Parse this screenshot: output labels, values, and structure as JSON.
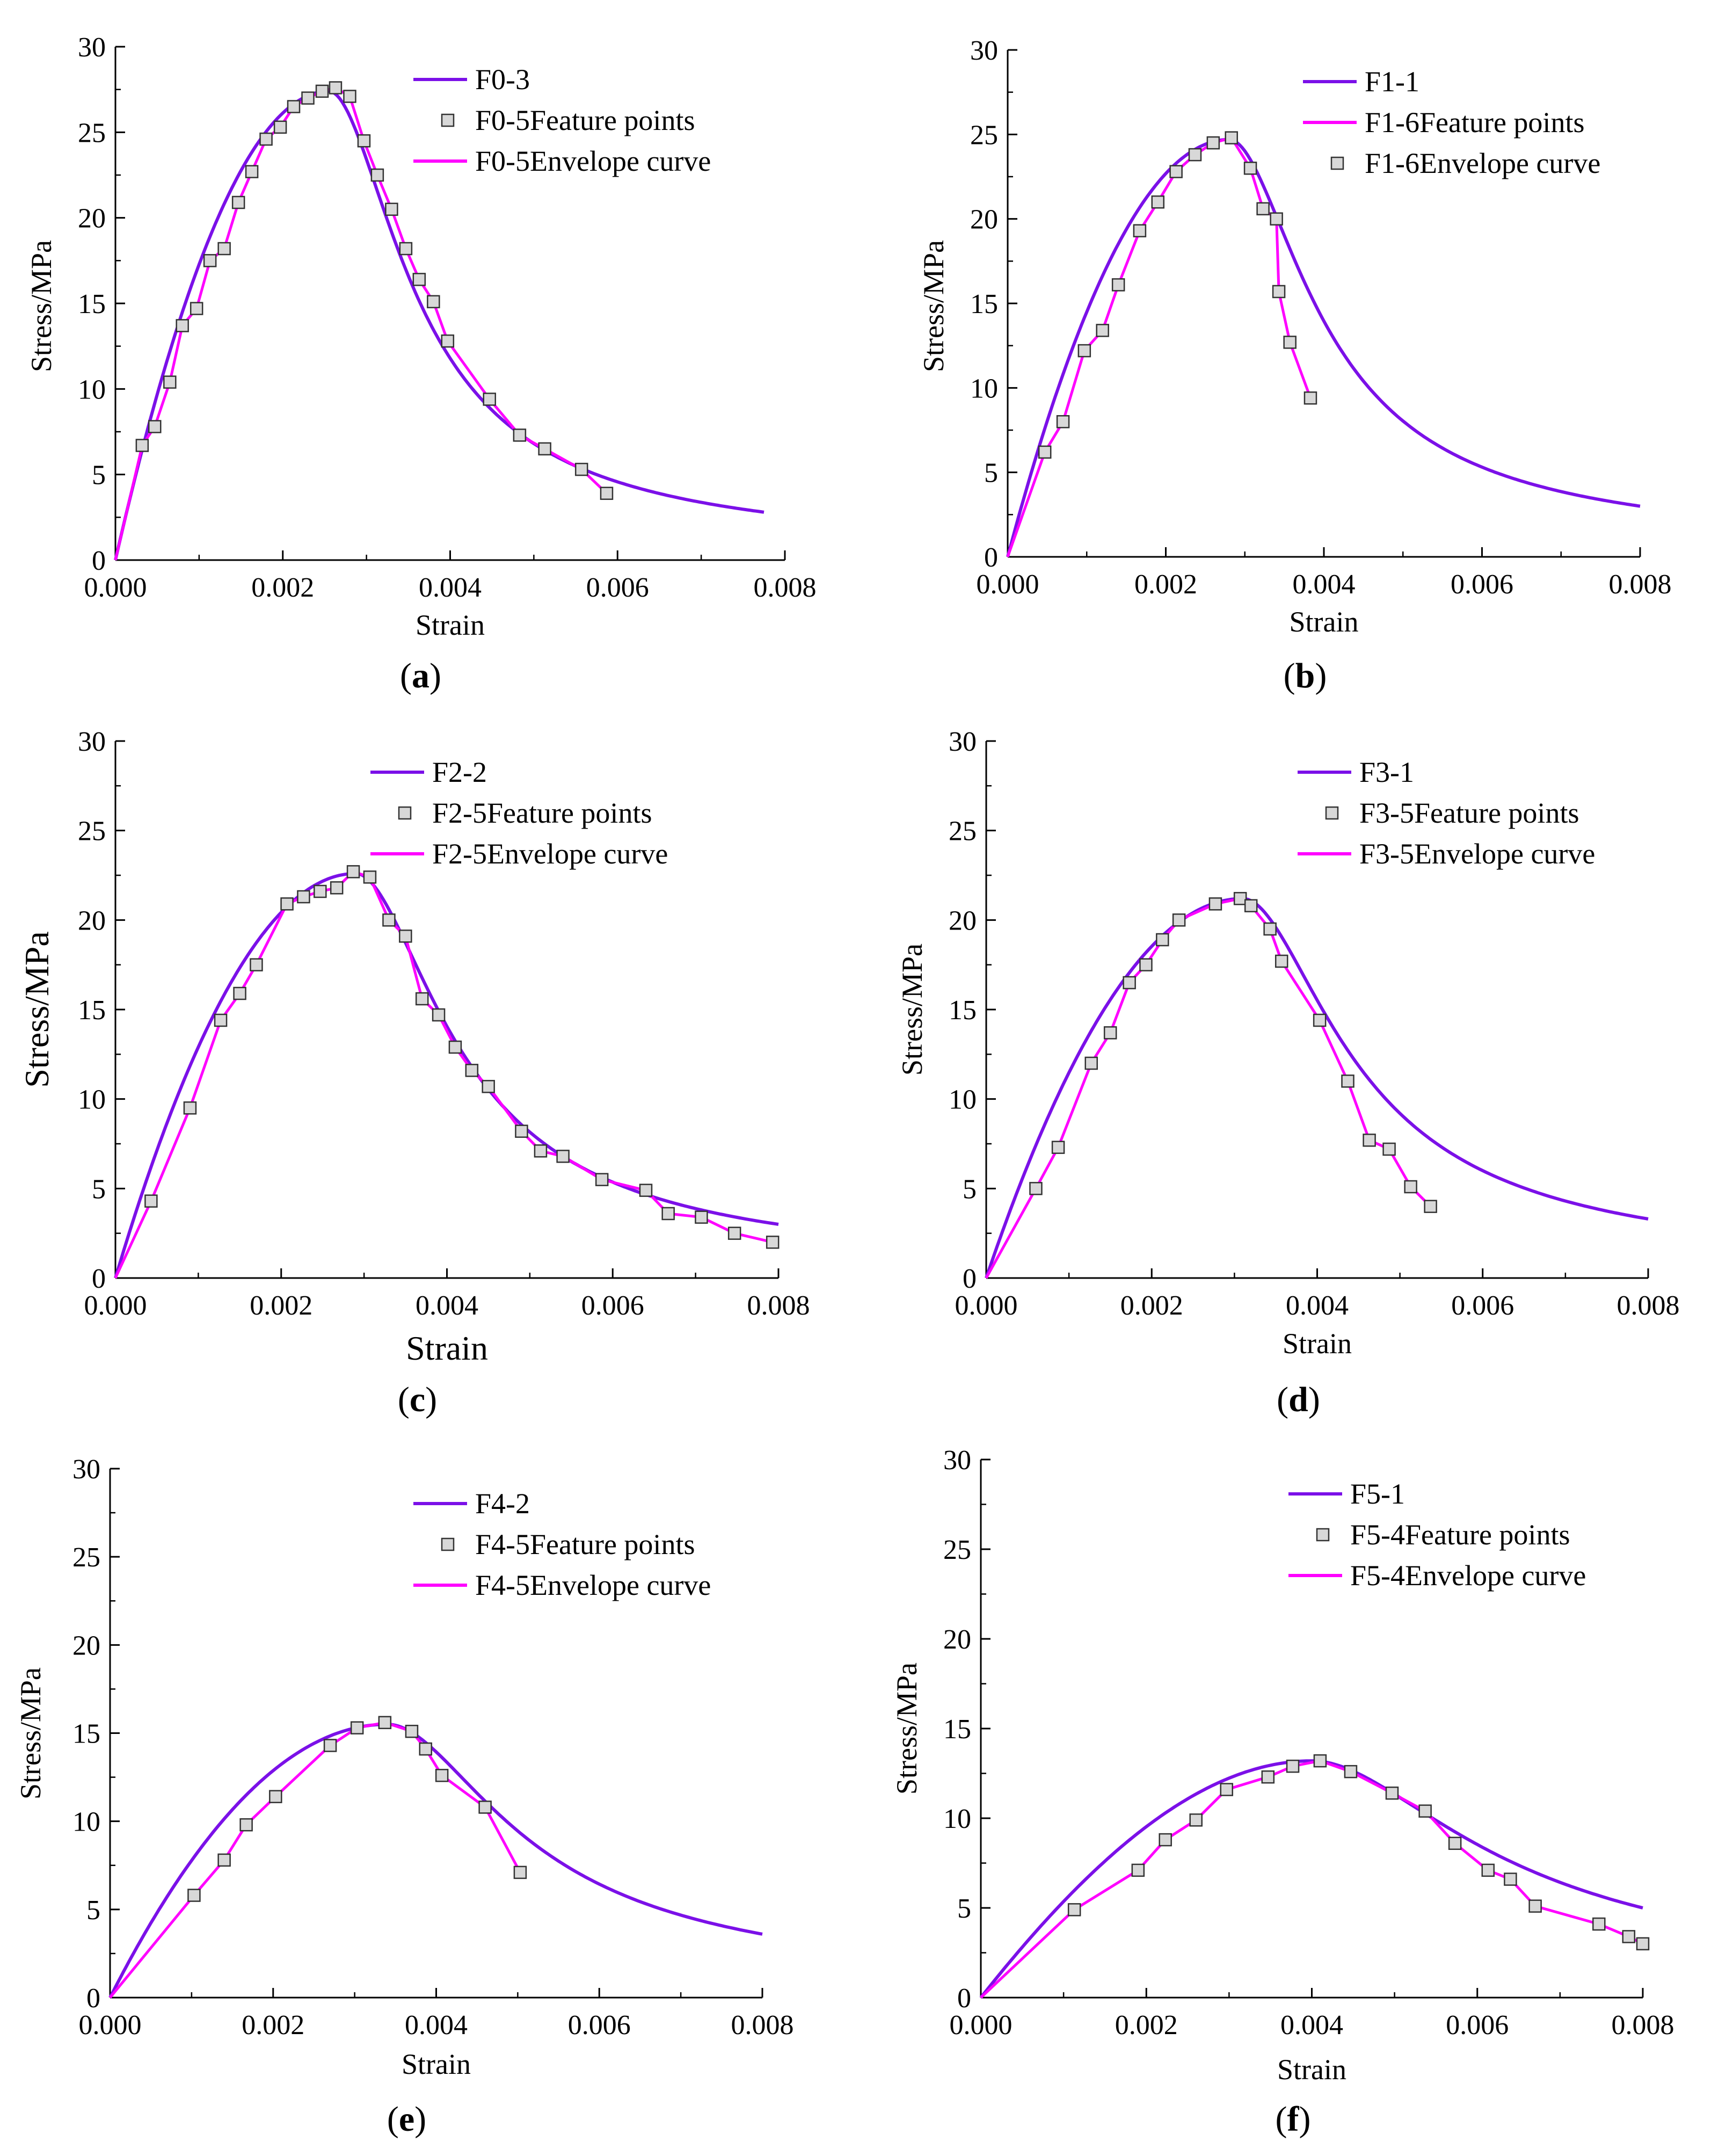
{
  "colors": {
    "model": "#7b10e8",
    "envelope": "#ff00ff",
    "points_stroke": "#333333",
    "points_fill": "#d8d8d8",
    "axis": "#000000"
  },
  "chart_data": [
    {
      "type": "line",
      "panel_label": "a",
      "xlabel": "Strain",
      "ylabel": "Stress/MPa",
      "xlim": [
        0,
        0.008
      ],
      "ylim": [
        0,
        30
      ],
      "xticks": [
        "0.000",
        "0.002",
        "0.004",
        "0.006",
        "0.008"
      ],
      "yticks": [
        "0",
        "5",
        "10",
        "15",
        "20",
        "25",
        "30"
      ],
      "legend": {
        "model": "F0-3",
        "points": "F0-5Feature points",
        "envelope": "F0-5Envelope curve",
        "order": [
          "model",
          "points",
          "envelope"
        ]
      },
      "model_curve": {
        "name": "F0-3",
        "peak_strain": 0.00255,
        "peak_stress": 27.4,
        "x_end": 0.00775,
        "end_stress": 2.8
      },
      "series": [
        {
          "name": "F0-5Envelope curve",
          "role": "envelope_and_points",
          "x": [
            0.0,
            0.00032,
            0.00047,
            0.00065,
            0.0008,
            0.00097,
            0.00113,
            0.0013,
            0.00147,
            0.00163,
            0.0018,
            0.00197,
            0.00213,
            0.0023,
            0.00247,
            0.00263,
            0.0028,
            0.00297,
            0.00313,
            0.0033,
            0.00347,
            0.00363,
            0.0038,
            0.00397,
            0.00447,
            0.00483,
            0.00513,
            0.00557,
            0.00587
          ],
          "y": [
            0.0,
            6.7,
            7.8,
            10.4,
            13.7,
            14.7,
            17.5,
            18.2,
            20.9,
            22.7,
            24.6,
            25.3,
            26.5,
            27.0,
            27.4,
            27.6,
            27.1,
            24.5,
            22.5,
            20.5,
            18.2,
            16.4,
            15.1,
            12.8,
            9.4,
            7.3,
            6.5,
            5.3,
            3.9
          ]
        }
      ]
    },
    {
      "type": "line",
      "panel_label": "b",
      "xlabel": "Strain",
      "ylabel": "Stress/MPa",
      "xlim": [
        0,
        0.008
      ],
      "ylim": [
        0,
        30
      ],
      "xticks": [
        "0.000",
        "0.002",
        "0.004",
        "0.006",
        "0.008"
      ],
      "yticks": [
        "0",
        "5",
        "10",
        "15",
        "20",
        "25",
        "30"
      ],
      "legend": {
        "model": "F1-1",
        "points": "F1-6Envelope curve",
        "envelope": "F1-6Feature points",
        "order": [
          "model",
          "envelope",
          "points"
        ]
      },
      "model_curve": {
        "name": "F1-1",
        "peak_strain": 0.0028,
        "peak_stress": 24.7,
        "x_end": 0.008,
        "end_stress": 3.0
      },
      "series": [
        {
          "name": "F1-6",
          "role": "envelope_and_points",
          "x": [
            0.0,
            0.00047,
            0.0007,
            0.00097,
            0.0012,
            0.0014,
            0.00167,
            0.0019,
            0.00213,
            0.00237,
            0.0026,
            0.00283,
            0.00307,
            0.00323,
            0.0034,
            0.00343,
            0.00357,
            0.00383
          ],
          "y": [
            0.0,
            6.2,
            8.0,
            12.2,
            13.4,
            16.1,
            19.3,
            21.0,
            22.8,
            23.8,
            24.5,
            24.8,
            23.0,
            20.6,
            20.0,
            15.7,
            12.7,
            9.4
          ]
        }
      ]
    },
    {
      "type": "line",
      "panel_label": "c",
      "xlabel": "Strain",
      "ylabel": "Stress/MPa",
      "xlim": [
        0,
        0.008
      ],
      "ylim": [
        0,
        30
      ],
      "xticks": [
        "0.000",
        "0.002",
        "0.004",
        "0.006",
        "0.008"
      ],
      "yticks": [
        "0",
        "5",
        "10",
        "15",
        "20",
        "25",
        "30"
      ],
      "legend": {
        "model": "F2-2",
        "points": "F2-5Feature points",
        "envelope": "F2-5Envelope curve",
        "order": [
          "model",
          "points",
          "envelope"
        ]
      },
      "model_curve": {
        "name": "F2-2",
        "peak_strain": 0.0029,
        "peak_stress": 22.6,
        "x_end": 0.008,
        "end_stress": 3.0
      },
      "series": [
        {
          "name": "F2-5Envelope curve",
          "role": "envelope_and_points",
          "x": [
            0.0,
            0.00043,
            0.0009,
            0.00127,
            0.0015,
            0.0017,
            0.00207,
            0.00227,
            0.00247,
            0.00267,
            0.00287,
            0.00307,
            0.0033,
            0.0035,
            0.0037,
            0.0039,
            0.0041,
            0.0043,
            0.0045,
            0.0049,
            0.00513,
            0.0054,
            0.00587,
            0.0064,
            0.00667,
            0.00707,
            0.00747,
            0.00793
          ],
          "y": [
            0.0,
            4.3,
            9.5,
            14.4,
            15.9,
            17.5,
            20.9,
            21.3,
            21.6,
            21.8,
            22.7,
            22.4,
            20.0,
            19.1,
            15.6,
            14.7,
            12.9,
            11.6,
            10.7,
            8.2,
            7.1,
            6.8,
            5.5,
            4.9,
            3.6,
            3.4,
            2.5,
            2.0
          ]
        }
      ]
    },
    {
      "type": "line",
      "panel_label": "d",
      "xlabel": "Strain",
      "ylabel": "Stress/MPa",
      "xlim": [
        0,
        0.008
      ],
      "ylim": [
        0,
        30
      ],
      "xticks": [
        "0.000",
        "0.002",
        "0.004",
        "0.006",
        "0.008"
      ],
      "yticks": [
        "0",
        "5",
        "10",
        "15",
        "20",
        "25",
        "30"
      ],
      "legend": {
        "model": "F3-1",
        "points": "F3-5Feature points",
        "envelope": "F3-5Envelope curve",
        "order": [
          "model",
          "points",
          "envelope"
        ]
      },
      "model_curve": {
        "name": "F3-1",
        "peak_strain": 0.0031,
        "peak_stress": 21.2,
        "x_end": 0.008,
        "end_stress": 3.3
      },
      "series": [
        {
          "name": "F3-5Envelope curve",
          "role": "envelope_and_points",
          "x": [
            0.0,
            0.0006,
            0.00087,
            0.00127,
            0.0015,
            0.00173,
            0.00193,
            0.00213,
            0.00233,
            0.00277,
            0.00307,
            0.0032,
            0.00343,
            0.00357,
            0.00403,
            0.00437,
            0.00463,
            0.00487,
            0.00513,
            0.00537
          ],
          "y": [
            0.0,
            5.0,
            7.3,
            12.0,
            13.7,
            16.5,
            17.5,
            18.9,
            20.0,
            20.9,
            21.2,
            20.8,
            19.5,
            17.7,
            14.4,
            11.0,
            7.7,
            7.2,
            5.1,
            4.0
          ]
        }
      ]
    },
    {
      "type": "line",
      "panel_label": "e",
      "xlabel": "Strain",
      "ylabel": "Stress/MPa",
      "xlim": [
        0,
        0.008
      ],
      "ylim": [
        0,
        30
      ],
      "xticks": [
        "0.000",
        "0.002",
        "0.004",
        "0.006",
        "0.008"
      ],
      "yticks": [
        "0",
        "5",
        "10",
        "15",
        "20",
        "25",
        "30"
      ],
      "legend": {
        "model": "F4-2",
        "points": "F4-5Feature points",
        "envelope": "F4-5Envelope curve",
        "order": [
          "model",
          "points",
          "envelope"
        ]
      },
      "model_curve": {
        "name": "F4-2",
        "peak_strain": 0.0034,
        "peak_stress": 15.5,
        "x_end": 0.008,
        "end_stress": 3.6
      },
      "series": [
        {
          "name": "F4-5Envelope curve",
          "role": "envelope_and_points",
          "x": [
            0.0,
            0.00103,
            0.0014,
            0.00167,
            0.00203,
            0.0027,
            0.00303,
            0.00337,
            0.0037,
            0.00387,
            0.00407,
            0.0046,
            0.00503
          ],
          "y": [
            0.0,
            5.8,
            7.8,
            9.8,
            11.4,
            14.3,
            15.3,
            15.6,
            15.1,
            14.1,
            12.6,
            10.8,
            7.1
          ]
        }
      ]
    },
    {
      "type": "line",
      "panel_label": "f",
      "xlabel": "Strain",
      "ylabel": "Stress/MPa",
      "xlim": [
        0,
        0.008
      ],
      "ylim": [
        0,
        30
      ],
      "xticks": [
        "0.000",
        "0.002",
        "0.004",
        "0.006",
        "0.008"
      ],
      "yticks": [
        "0",
        "5",
        "10",
        "15",
        "20",
        "25",
        "30"
      ],
      "legend": {
        "model": "F5-1",
        "points": "F5-4Feature points",
        "envelope": "F5-4Envelope curve",
        "order": [
          "model",
          "points",
          "envelope"
        ]
      },
      "model_curve": {
        "name": "F5-1",
        "peak_strain": 0.004,
        "peak_stress": 13.2,
        "x_end": 0.008,
        "end_stress": 5.0,
        "ascending_power": 1.5
      },
      "series": [
        {
          "name": "F5-4Envelope curve",
          "role": "envelope_and_points",
          "x": [
            0.0,
            0.00113,
            0.0019,
            0.00223,
            0.0026,
            0.00297,
            0.00347,
            0.00377,
            0.0041,
            0.00447,
            0.00497,
            0.00537,
            0.00573,
            0.00613,
            0.0064,
            0.0067,
            0.00747,
            0.00783,
            0.008
          ],
          "y": [
            0.0,
            4.9,
            7.1,
            8.8,
            9.9,
            11.6,
            12.3,
            12.9,
            13.2,
            12.6,
            11.4,
            10.4,
            8.6,
            7.1,
            6.6,
            5.1,
            4.1,
            3.4,
            3.0
          ]
        }
      ]
    }
  ]
}
